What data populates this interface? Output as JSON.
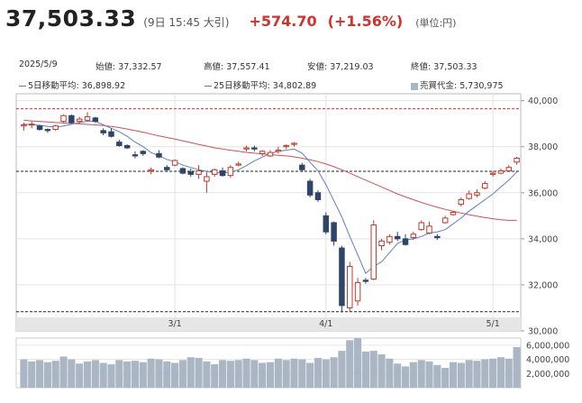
{
  "header": {
    "price": "37,503.33",
    "time": "(9日 15:45 大引)",
    "change": "+574.70",
    "change_pct": "(+1.56%)",
    "unit": "(単位:円)",
    "up_color": "#d2322d"
  },
  "summary": {
    "date": "2025/5/9",
    "open": "始値: 37,332.57",
    "high": "高値: 37,557.41",
    "low": "安値: 37,219.03",
    "close": "終値: 37,503.33"
  },
  "legend": {
    "ma5": "5日移動平均: 36,898.92",
    "ma25": "25日移動平均: 34,802.89",
    "volume": "売買代金: 5,730,975",
    "ma5_color": "#5b7fc4",
    "ma25_color": "#c9525c"
  },
  "chart_data": {
    "type": "candlestick",
    "y_ticks": [
      "40,000",
      "38,000",
      "36,000",
      "34,000",
      "32,000",
      "30,000"
    ],
    "y_tick_values": [
      40000,
      38000,
      36000,
      34000,
      32000,
      30000
    ],
    "ylim": [
      30000,
      40300
    ],
    "x_ticks": [
      {
        "label": "3/1",
        "index": 19
      },
      {
        "label": "4/1",
        "index": 38
      },
      {
        "label": "5/1",
        "index": 59
      }
    ],
    "vol_ticks": [
      "6,000,000",
      "4,000,000",
      "2,000,000"
    ],
    "vol_tick_values": [
      6000000,
      4000000,
      2000000
    ],
    "vol_max": 7000000,
    "ref_lines": [
      {
        "value": 39650,
        "style": "red-dashed"
      },
      {
        "value": 36930,
        "style": "black-dashed"
      },
      {
        "value": 30830,
        "style": "black-dashed"
      }
    ],
    "candles": [
      [
        38900,
        39050,
        38700,
        38950
      ],
      [
        38950,
        39100,
        38800,
        38980
      ],
      [
        38900,
        38950,
        38700,
        38750
      ],
      [
        38750,
        38800,
        38600,
        38700
      ],
      [
        38750,
        38950,
        38700,
        38900
      ],
      [
        39100,
        39400,
        39050,
        39350
      ],
      [
        39350,
        39400,
        39000,
        39050
      ],
      [
        39100,
        39300,
        39000,
        39200
      ],
      [
        39150,
        39500,
        39100,
        39300
      ],
      [
        39250,
        39300,
        39050,
        39100
      ],
      [
        38700,
        38800,
        38500,
        38600
      ],
      [
        38650,
        38800,
        38400,
        38450
      ],
      [
        38200,
        38300,
        38000,
        38050
      ],
      [
        38050,
        38100,
        37900,
        37950
      ],
      [
        37650,
        37800,
        37500,
        37600
      ],
      [
        37800,
        37850,
        37600,
        37700
      ],
      [
        36950,
        37100,
        36800,
        37000
      ],
      [
        37700,
        37850,
        37500,
        37550
      ],
      [
        37100,
        37200,
        36900,
        37000
      ],
      [
        37200,
        37450,
        37150,
        37400
      ],
      [
        37050,
        37100,
        36800,
        36850
      ],
      [
        36900,
        37050,
        36700,
        36800
      ],
      [
        36800,
        37200,
        36600,
        36950
      ],
      [
        36500,
        36900,
        36000,
        36700
      ],
      [
        36800,
        37050,
        36700,
        37000
      ],
      [
        36950,
        37100,
        36700,
        36750
      ],
      [
        36750,
        37200,
        36650,
        37100
      ],
      [
        37200,
        37350,
        37150,
        37250
      ],
      [
        37900,
        38050,
        37800,
        37950
      ],
      [
        37950,
        38050,
        37800,
        37900
      ],
      [
        37700,
        37850,
        37600,
        37800
      ],
      [
        37600,
        37850,
        37550,
        37750
      ],
      [
        37800,
        38000,
        37700,
        37850
      ],
      [
        38000,
        38100,
        37900,
        38050
      ],
      [
        38100,
        38200,
        38000,
        38150
      ],
      [
        37200,
        37300,
        36900,
        37000
      ],
      [
        36500,
        36600,
        35800,
        35900
      ],
      [
        36000,
        36100,
        35600,
        35700
      ],
      [
        35000,
        35150,
        34200,
        34300
      ],
      [
        34700,
        34750,
        33700,
        33900
      ],
      [
        33600,
        33700,
        30800,
        31100
      ],
      [
        31000,
        33000,
        30830,
        32800
      ],
      [
        31300,
        32300,
        31100,
        32100
      ],
      [
        32200,
        32300,
        32050,
        32150
      ],
      [
        32250,
        34800,
        32200,
        34600
      ],
      [
        33700,
        34000,
        33500,
        33900
      ],
      [
        33850,
        34200,
        33750,
        34100
      ],
      [
        34100,
        34300,
        33900,
        34000
      ],
      [
        34000,
        34200,
        33700,
        33750
      ],
      [
        34050,
        34300,
        33950,
        34200
      ],
      [
        34400,
        34800,
        34350,
        34700
      ],
      [
        34250,
        34750,
        34200,
        34550
      ],
      [
        34100,
        34200,
        33950,
        34050
      ],
      [
        34700,
        35000,
        34650,
        34900
      ],
      [
        35050,
        35200,
        35000,
        35150
      ],
      [
        35500,
        35800,
        35400,
        35700
      ],
      [
        35750,
        36100,
        35700,
        35950
      ],
      [
        35900,
        36150,
        35800,
        36000
      ],
      [
        36200,
        36500,
        36150,
        36400
      ],
      [
        36800,
        36950,
        36700,
        36850
      ],
      [
        36850,
        37050,
        36800,
        36950
      ],
      [
        36950,
        37200,
        36900,
        37100
      ],
      [
        37330,
        37560,
        37220,
        37500
      ]
    ],
    "ma5": [
      38980,
      38960,
      38930,
      38880,
      38850,
      38900,
      38980,
      39050,
      39100,
      39100,
      38950,
      38800,
      38650,
      38450,
      38200,
      38000,
      37750,
      37600,
      37450,
      37350,
      37200,
      37100,
      37000,
      36920,
      36880,
      36850,
      36900,
      37000,
      37180,
      37380,
      37550,
      37700,
      37800,
      37850,
      37900,
      37720,
      37330,
      36950,
      36350,
      35650,
      34950,
      34100,
      33300,
      32500,
      32800,
      33000,
      33400,
      33800,
      33950,
      34000,
      34100,
      34250,
      34300,
      34400,
      34650,
      34900,
      35200,
      35450,
      35700,
      35950,
      36250,
      36550,
      36900
    ],
    "ma25": [
      39150,
      39120,
      39100,
      39080,
      39050,
      39030,
      39010,
      38990,
      38970,
      38950,
      38920,
      38880,
      38830,
      38770,
      38700,
      38630,
      38550,
      38470,
      38400,
      38330,
      38250,
      38180,
      38100,
      38030,
      37950,
      37900,
      37850,
      37800,
      37750,
      37720,
      37690,
      37660,
      37630,
      37600,
      37560,
      37500,
      37430,
      37350,
      37250,
      37130,
      37000,
      36850,
      36700,
      36550,
      36400,
      36250,
      36100,
      35950,
      35820,
      35700,
      35580,
      35470,
      35370,
      35280,
      35200,
      35120,
      35050,
      34980,
      34920,
      34870,
      34830,
      34800,
      34802
    ],
    "volume": [
      4000000,
      3700000,
      3900000,
      3600000,
      3800000,
      4400000,
      4000000,
      3400000,
      3700000,
      3900000,
      3500000,
      3300000,
      3900000,
      3700000,
      3800000,
      3600000,
      4100000,
      4000000,
      3700000,
      3500000,
      3900000,
      4300000,
      4200000,
      3700000,
      3300000,
      3900000,
      3800000,
      3900000,
      4100000,
      3900000,
      3500000,
      3600000,
      4100000,
      3900000,
      4100000,
      4000000,
      3500000,
      4200000,
      4000000,
      4300000,
      5200000,
      6700000,
      7000000,
      5100000,
      5200000,
      4700000,
      4100000,
      3400000,
      3000000,
      3600000,
      3900000,
      3700000,
      3200000,
      2800000,
      3600000,
      3500000,
      3900000,
      3800000,
      4000000,
      4100000,
      4300000,
      4100000,
      5730975
    ]
  }
}
